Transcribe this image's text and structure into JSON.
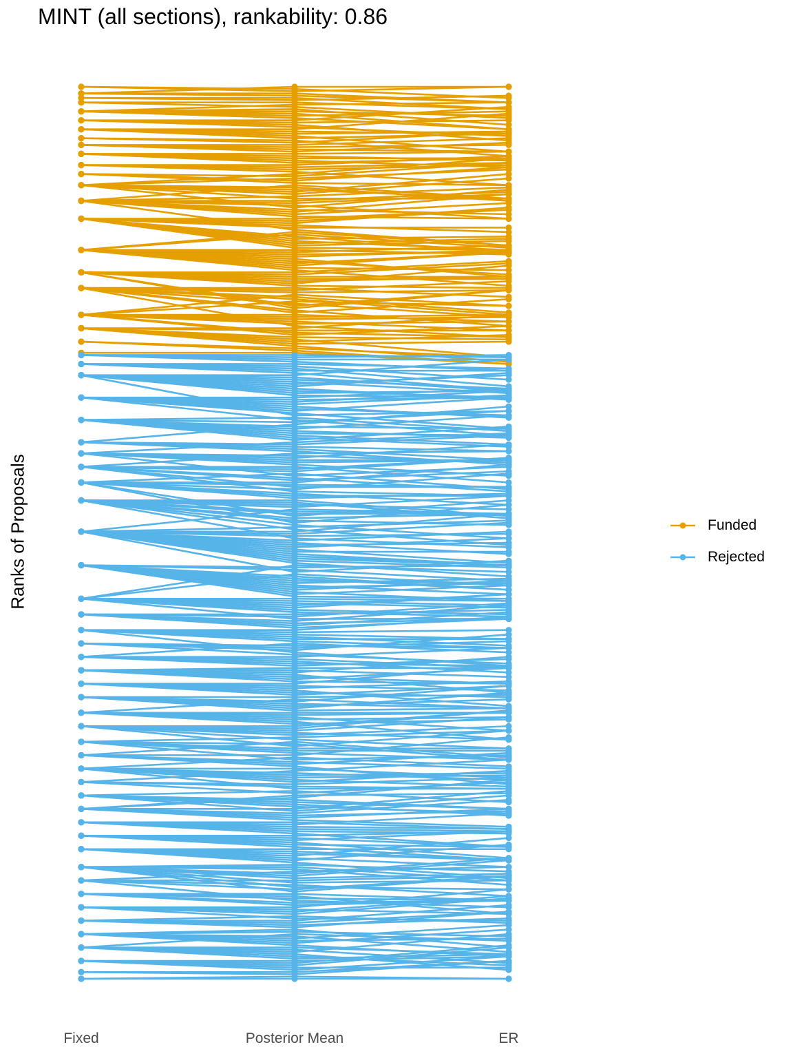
{
  "chart_data": {
    "type": "line",
    "title": "MINT (all sections), rankability: 0.86",
    "xlabel": "",
    "ylabel": "Ranks of Proposals",
    "categories": [
      "Fixed",
      "Posterior Mean",
      "ER"
    ],
    "y_direction": "rank 1 at top",
    "num_proposals": 400,
    "num_funded": 120,
    "legend": {
      "position": "right",
      "entries": [
        {
          "name": "Funded",
          "color": "#E69F00"
        },
        {
          "name": "Rejected",
          "color": "#56B4E9"
        }
      ]
    },
    "series": [
      {
        "name": "Funded",
        "color": "#E69F00",
        "fixed_rank_levels": [
          1,
          4,
          6,
          8,
          12,
          16,
          20,
          24,
          27,
          31,
          36,
          40,
          45,
          52,
          60,
          74,
          84,
          91,
          103,
          109,
          115,
          120
        ]
      },
      {
        "name": "Rejected",
        "color": "#56B4E9",
        "fixed_rank_levels": [
          121,
          125,
          130,
          140,
          150,
          160,
          165,
          171,
          178,
          186,
          200,
          215,
          230,
          237,
          244,
          250,
          256,
          262,
          268,
          274,
          281,
          287,
          294,
          300,
          306,
          312,
          318,
          324,
          330,
          336,
          342,
          350,
          356,
          362,
          368,
          374,
          380,
          386,
          392,
          397,
          400
        ]
      }
    ]
  }
}
